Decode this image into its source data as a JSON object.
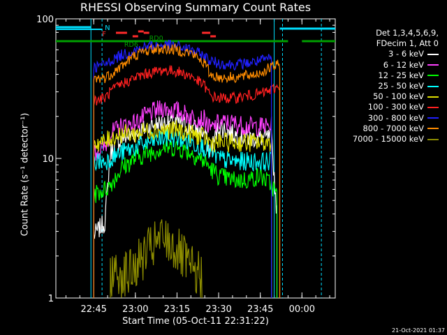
{
  "chart_data": {
    "type": "line",
    "title": "RHESSI Observing Summary Count Rates",
    "xlabel": "Start Time (05-Oct-11 22:31:22)",
    "ylabel": "Count Rate (s⁻¹ detector⁻¹)",
    "yscale": "log",
    "ylim": [
      1,
      100
    ],
    "xlim": [
      "22:31:22",
      "00:12:00"
    ],
    "x_ticks": [
      "22:45",
      "23:00",
      "23:15",
      "23:30",
      "23:45",
      "00:00"
    ],
    "y_ticks": [
      "1",
      "10",
      "100"
    ],
    "legend_header": [
      "Det 1,3,4,5,6,9,",
      "FDecim 1, Att 0"
    ],
    "footer": "21-Oct-2021 01:37",
    "flags": {
      "F": {
        "label": "F",
        "color": "#ff2a2a"
      },
      "N": {
        "label": "N",
        "color": "#00e0ff"
      },
      "SAA": {
        "color": "#00e0ff"
      },
      "RD0": {
        "label": "RD0",
        "color": "#00a000"
      },
      "RD6": {
        "label": "RD6",
        "color": "#00a000"
      }
    },
    "series": [
      {
        "name": "3 - 6 keV",
        "color": "#ffffff",
        "points": [
          [
            "22:45",
            2.8
          ],
          [
            "22:49",
            3.5
          ],
          [
            "22:51",
            11
          ],
          [
            "22:55",
            14
          ],
          [
            "23:00",
            15
          ],
          [
            "23:05",
            17
          ],
          [
            "23:10",
            18
          ],
          [
            "23:15",
            18
          ],
          [
            "23:20",
            17
          ],
          [
            "23:25",
            15
          ],
          [
            "23:27",
            11
          ],
          [
            "23:30",
            17
          ],
          [
            "23:35",
            15
          ],
          [
            "23:40",
            14
          ],
          [
            "23:45",
            14
          ],
          [
            "23:49",
            14
          ],
          [
            "23:51",
            4.0
          ]
        ]
      },
      {
        "name": "6 - 12 keV",
        "color": "#ff40ff",
        "points": [
          [
            "22:45",
            11
          ],
          [
            "22:49",
            12
          ],
          [
            "22:51",
            15
          ],
          [
            "22:55",
            17
          ],
          [
            "23:00",
            18
          ],
          [
            "23:05",
            21
          ],
          [
            "23:10",
            23
          ],
          [
            "23:15",
            22
          ],
          [
            "23:20",
            20
          ],
          [
            "23:25",
            19
          ],
          [
            "23:27",
            16
          ],
          [
            "23:30",
            18
          ],
          [
            "23:35",
            18
          ],
          [
            "23:40",
            17
          ],
          [
            "23:45",
            17
          ],
          [
            "23:49",
            17
          ]
        ]
      },
      {
        "name": "12 - 25 keV",
        "color": "#00ff00",
        "points": [
          [
            "22:45",
            5.5
          ],
          [
            "22:49",
            6.0
          ],
          [
            "22:51",
            6.5
          ],
          [
            "22:55",
            8.5
          ],
          [
            "23:00",
            10
          ],
          [
            "23:05",
            11
          ],
          [
            "23:10",
            12
          ],
          [
            "23:15",
            12
          ],
          [
            "23:20",
            11
          ],
          [
            "23:25",
            9.5
          ],
          [
            "23:27",
            8.5
          ],
          [
            "23:30",
            7.5
          ],
          [
            "23:35",
            7.0
          ],
          [
            "23:40",
            7.0
          ],
          [
            "23:45",
            7.5
          ],
          [
            "23:49",
            6.5
          ],
          [
            "23:51",
            5.5
          ]
        ]
      },
      {
        "name": "25 - 50 keV",
        "color": "#00ffff",
        "points": [
          [
            "22:45",
            9.5
          ],
          [
            "22:49",
            9.5
          ],
          [
            "22:51",
            10
          ],
          [
            "22:55",
            11
          ],
          [
            "23:00",
            12
          ],
          [
            "23:05",
            13
          ],
          [
            "23:10",
            14
          ],
          [
            "23:15",
            14
          ],
          [
            "23:20",
            13
          ],
          [
            "23:25",
            12
          ],
          [
            "23:27",
            11
          ],
          [
            "23:30",
            10
          ],
          [
            "23:35",
            9.5
          ],
          [
            "23:40",
            9.5
          ],
          [
            "23:45",
            9.5
          ],
          [
            "23:49",
            9.5
          ]
        ]
      },
      {
        "name": "50 - 100 keV",
        "color": "#e0e000",
        "points": [
          [
            "22:45",
            13
          ],
          [
            "22:49",
            13
          ],
          [
            "22:51",
            14
          ],
          [
            "22:55",
            15
          ],
          [
            "23:00",
            15
          ],
          [
            "23:05",
            16
          ],
          [
            "23:10",
            16
          ],
          [
            "23:15",
            16
          ],
          [
            "23:20",
            15
          ],
          [
            "23:25",
            14
          ],
          [
            "23:27",
            13
          ],
          [
            "23:30",
            13
          ],
          [
            "23:35",
            13
          ],
          [
            "23:40",
            13
          ],
          [
            "23:45",
            13
          ],
          [
            "23:49",
            13
          ]
        ]
      },
      {
        "name": "100 - 300 keV",
        "color": "#ff2020",
        "points": [
          [
            "22:45",
            26
          ],
          [
            "22:49",
            27
          ],
          [
            "22:51",
            30
          ],
          [
            "22:55",
            34
          ],
          [
            "23:00",
            38
          ],
          [
            "23:05",
            41
          ],
          [
            "23:10",
            43
          ],
          [
            "23:15",
            42
          ],
          [
            "23:20",
            39
          ],
          [
            "23:25",
            33
          ],
          [
            "23:27",
            28
          ],
          [
            "23:30",
            27
          ],
          [
            "23:35",
            27
          ],
          [
            "23:40",
            28
          ],
          [
            "23:45",
            29
          ],
          [
            "23:49",
            31
          ],
          [
            "23:52",
            33
          ]
        ]
      },
      {
        "name": "300 - 800 keV",
        "color": "#2020ff",
        "points": [
          [
            "22:45",
            45
          ],
          [
            "22:49",
            47
          ],
          [
            "22:51",
            50
          ],
          [
            "22:55",
            55
          ],
          [
            "23:00",
            60
          ],
          [
            "23:05",
            64
          ],
          [
            "23:10",
            65
          ],
          [
            "23:15",
            64
          ],
          [
            "23:20",
            60
          ],
          [
            "23:25",
            54
          ],
          [
            "23:27",
            50
          ],
          [
            "23:30",
            48
          ],
          [
            "23:35",
            47
          ],
          [
            "23:40",
            48
          ],
          [
            "23:45",
            50
          ],
          [
            "23:49",
            52
          ]
        ]
      },
      {
        "name": "800 - 7000 keV",
        "color": "#ff8c00",
        "points": [
          [
            "22:45",
            37
          ],
          [
            "22:49",
            38
          ],
          [
            "22:51",
            40
          ],
          [
            "22:55",
            46
          ],
          [
            "23:00",
            55
          ],
          [
            "23:05",
            60
          ],
          [
            "23:10",
            61
          ],
          [
            "23:15",
            60
          ],
          [
            "23:20",
            57
          ],
          [
            "23:25",
            48
          ],
          [
            "23:27",
            40
          ],
          [
            "23:30",
            38
          ],
          [
            "23:35",
            38
          ],
          [
            "23:40",
            39
          ],
          [
            "23:45",
            41
          ],
          [
            "23:49",
            45
          ],
          [
            "23:52",
            47
          ]
        ]
      },
      {
        "name": "7000 - 15000 keV",
        "color": "#8c8c00",
        "points": [
          [
            "22:51",
            1.5
          ],
          [
            "22:58",
            1.5
          ],
          [
            "23:05",
            2.2
          ],
          [
            "23:10",
            2.7
          ],
          [
            "23:15",
            2.2
          ],
          [
            "23:20",
            1.6
          ],
          [
            "23:24",
            1.4
          ]
        ]
      }
    ]
  }
}
